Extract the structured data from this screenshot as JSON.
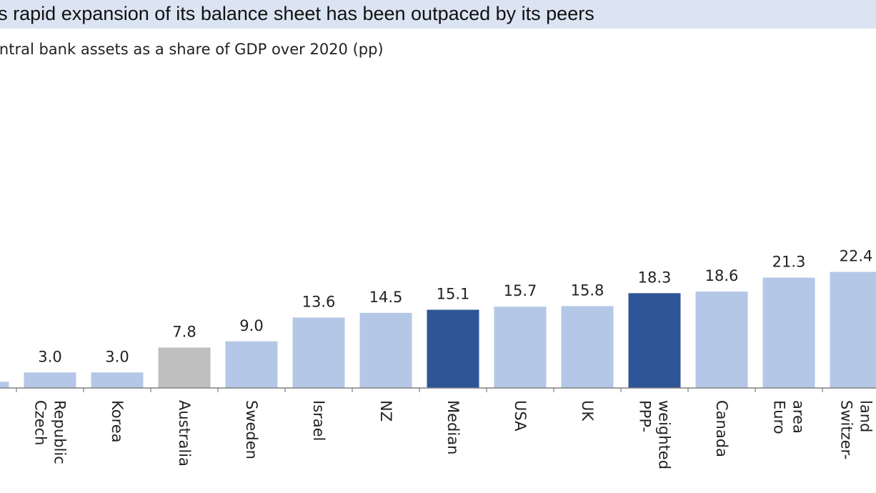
{
  "header": {
    "title": "'s rapid expansion of its balance sheet has been outpaced by its peers",
    "subtitle": "entral bank assets as a share of GDP over 2020 (pp)"
  },
  "colors": {
    "title_band": "#dbe4f3",
    "peer_bar": "#b4c7e7",
    "highlight_bar": "#2f5597",
    "reference_bar": "#bfbfbf",
    "axis": "#808080"
  },
  "chart_data": {
    "type": "bar",
    "title": "",
    "xlabel": "",
    "ylabel": "",
    "grid": false,
    "legend": "none",
    "ylim": [
      0,
      24
    ],
    "categories": [
      "",
      "Czech\nRepublic",
      "Korea",
      "Australia",
      "Sweden",
      "Israel",
      "NZ",
      "Median",
      "USA",
      "UK",
      "PPP-\nweighted",
      "Canada",
      "Euro\narea",
      "Switzer-\nland"
    ],
    "values": [
      1.2,
      3.0,
      3.0,
      7.8,
      9.0,
      13.6,
      14.5,
      15.1,
      15.7,
      15.8,
      18.3,
      18.6,
      21.3,
      22.4
    ],
    "data_labels": [
      "",
      "3.0",
      "3.0",
      "7.8",
      "9.0",
      "13.6",
      "14.5",
      "15.1",
      "15.7",
      "15.8",
      "18.3",
      "18.6",
      "21.3",
      "22.4"
    ],
    "bar_style": [
      "peer",
      "peer",
      "peer",
      "reference",
      "peer",
      "peer",
      "peer",
      "highlight",
      "peer",
      "peer",
      "highlight",
      "peer",
      "peer",
      "peer"
    ]
  }
}
